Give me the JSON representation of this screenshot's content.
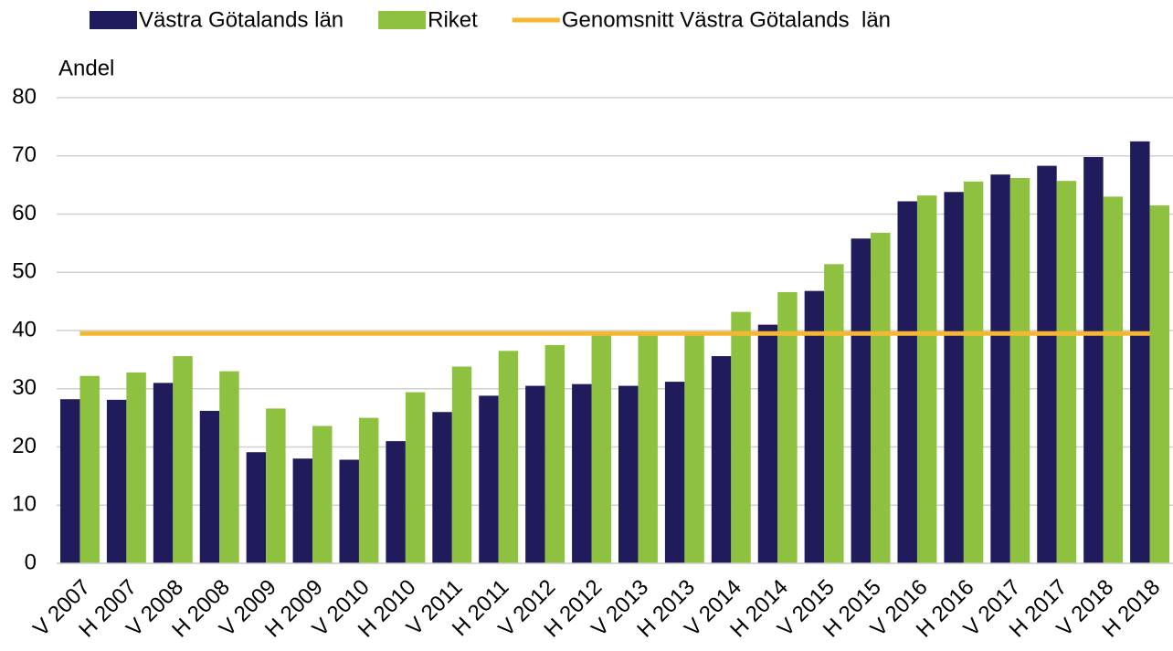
{
  "chart_data": {
    "type": "bar",
    "y_label": "Andel",
    "categories": [
      "V 2007",
      "H 2007",
      "V 2008",
      "H 2008",
      "V 2009",
      "H 2009",
      "V 2010",
      "H 2010",
      "V 2011",
      "H 2011",
      "V 2012",
      "H 2012",
      "V 2013",
      "H 2013",
      "V 2014",
      "H 2014",
      "V 2015",
      "H 2015",
      "V 2016",
      "H 2016",
      "V 2017",
      "H 2017",
      "V 2018",
      "H 2018"
    ],
    "series": [
      {
        "name": "Västra Götalands län",
        "color": "#201c5c",
        "values": [
          28.2,
          28.1,
          31,
          26.2,
          19.1,
          18,
          17.8,
          21,
          26,
          28.8,
          30.5,
          30.8,
          30.5,
          31.2,
          35.6,
          41,
          46.8,
          55.8,
          62.2,
          63.8,
          66.8,
          68.3,
          69.8,
          72.5
        ]
      },
      {
        "name": "Riket",
        "color": "#8dc13f",
        "values": [
          32.2,
          32.8,
          35.6,
          33,
          26.6,
          23.6,
          25,
          29.4,
          33.8,
          36.5,
          37.5,
          39.5,
          39.5,
          39.5,
          43.2,
          46.6,
          51.4,
          56.8,
          63.2,
          65.6,
          66.2,
          65.7,
          63,
          61.5
        ]
      },
      {
        "name": "Genomsnitt Västra Götalands  län",
        "color": "#f5b731",
        "type": "line",
        "values": [
          39.5,
          39.5,
          39.5,
          39.5,
          39.5,
          39.5,
          39.5,
          39.5,
          39.5,
          39.5,
          39.5,
          39.5,
          39.5,
          39.5,
          39.5,
          39.5,
          39.5,
          39.5,
          39.5,
          39.5,
          39.5,
          39.5,
          39.5,
          39.5
        ]
      }
    ],
    "ylim": [
      0,
      80
    ],
    "yticks": [
      0,
      10,
      20,
      30,
      40,
      50,
      60,
      70,
      80
    ],
    "grid": true,
    "legend": "top"
  }
}
